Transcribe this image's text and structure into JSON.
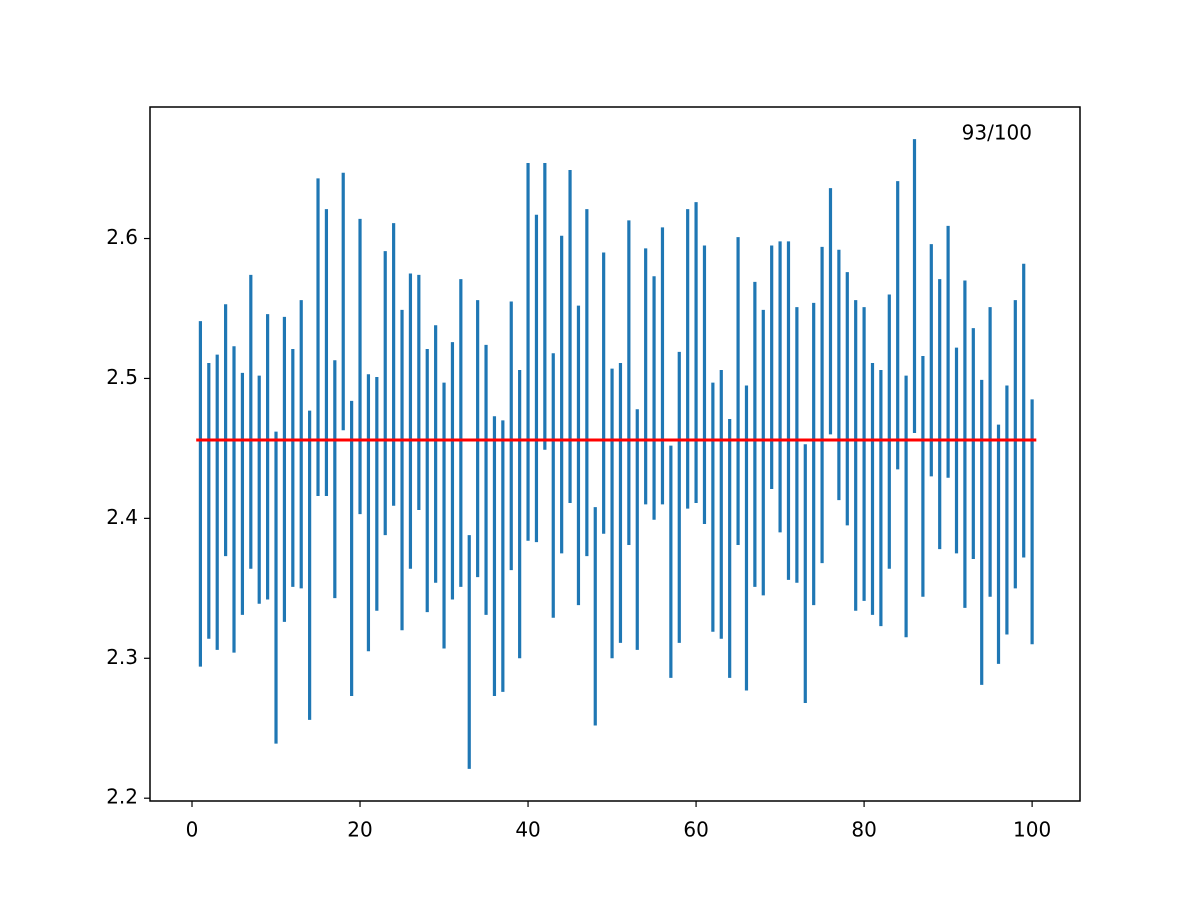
{
  "chart_data": {
    "type": "interval",
    "annotation": "93/100",
    "x": [
      1,
      2,
      3,
      4,
      5,
      6,
      7,
      8,
      9,
      10,
      11,
      12,
      13,
      14,
      15,
      16,
      17,
      18,
      19,
      20,
      21,
      22,
      23,
      24,
      25,
      26,
      27,
      28,
      29,
      30,
      31,
      32,
      33,
      34,
      35,
      36,
      37,
      38,
      39,
      40,
      41,
      42,
      43,
      44,
      45,
      46,
      47,
      48,
      49,
      50,
      51,
      52,
      53,
      54,
      55,
      56,
      57,
      58,
      59,
      60,
      61,
      62,
      63,
      64,
      65,
      66,
      67,
      68,
      69,
      70,
      71,
      72,
      73,
      74,
      75,
      76,
      77,
      78,
      79,
      80,
      81,
      82,
      83,
      84,
      85,
      86,
      87,
      88,
      89,
      90,
      91,
      92,
      93,
      94,
      95,
      96,
      97,
      98,
      99,
      100
    ],
    "low": [
      2.294,
      2.314,
      2.306,
      2.373,
      2.304,
      2.331,
      2.364,
      2.339,
      2.342,
      2.239,
      2.326,
      2.351,
      2.35,
      2.256,
      2.416,
      2.416,
      2.343,
      2.463,
      2.273,
      2.403,
      2.305,
      2.334,
      2.388,
      2.409,
      2.32,
      2.364,
      2.406,
      2.333,
      2.354,
      2.307,
      2.342,
      2.351,
      2.221,
      2.358,
      2.331,
      2.273,
      2.276,
      2.363,
      2.3,
      2.384,
      2.383,
      2.449,
      2.329,
      2.375,
      2.411,
      2.338,
      2.373,
      2.252,
      2.389,
      2.3,
      2.311,
      2.381,
      2.306,
      2.41,
      2.399,
      2.41,
      2.286,
      2.311,
      2.407,
      2.411,
      2.396,
      2.319,
      2.314,
      2.286,
      2.381,
      2.277,
      2.351,
      2.345,
      2.421,
      2.39,
      2.356,
      2.354,
      2.268,
      2.338,
      2.368,
      2.46,
      2.413,
      2.395,
      2.334,
      2.341,
      2.331,
      2.323,
      2.364,
      2.435,
      2.315,
      2.461,
      2.344,
      2.43,
      2.378,
      2.429,
      2.375,
      2.336,
      2.371,
      2.281,
      2.344,
      2.296,
      2.317,
      2.35,
      2.372,
      2.31
    ],
    "high": [
      2.541,
      2.511,
      2.517,
      2.553,
      2.523,
      2.504,
      2.574,
      2.502,
      2.546,
      2.462,
      2.544,
      2.521,
      2.556,
      2.477,
      2.643,
      2.621,
      2.513,
      2.647,
      2.484,
      2.614,
      2.503,
      2.501,
      2.591,
      2.611,
      2.549,
      2.575,
      2.574,
      2.521,
      2.538,
      2.497,
      2.526,
      2.571,
      2.388,
      2.556,
      2.524,
      2.473,
      2.47,
      2.555,
      2.506,
      2.654,
      2.617,
      2.654,
      2.518,
      2.602,
      2.649,
      2.552,
      2.621,
      2.408,
      2.59,
      2.507,
      2.511,
      2.613,
      2.478,
      2.593,
      2.573,
      2.608,
      2.452,
      2.519,
      2.621,
      2.626,
      2.595,
      2.497,
      2.506,
      2.471,
      2.601,
      2.495,
      2.569,
      2.549,
      2.595,
      2.598,
      2.598,
      2.551,
      2.453,
      2.554,
      2.594,
      2.636,
      2.592,
      2.576,
      2.556,
      2.551,
      2.511,
      2.506,
      2.56,
      2.641,
      2.502,
      2.671,
      2.516,
      2.596,
      2.571,
      2.609,
      2.522,
      2.57,
      2.536,
      2.499,
      2.551,
      2.467,
      2.495,
      2.556,
      2.582,
      2.485
    ],
    "color": "#1f77b4",
    "reference": {
      "value": 2.456,
      "xrange": [
        0.5,
        100.5
      ],
      "color": "red"
    },
    "xlim": [
      -5,
      105.7
    ],
    "xticks": [
      0,
      20,
      40,
      60,
      80,
      100
    ],
    "ylim": [
      2.198,
      2.694
    ],
    "yticks": [
      2.2,
      2.3,
      2.4,
      2.5,
      2.6
    ]
  }
}
